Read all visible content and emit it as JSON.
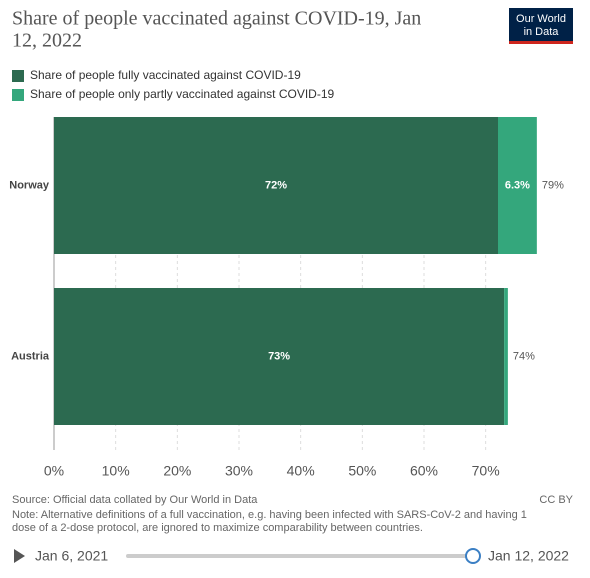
{
  "chart_data": {
    "type": "stacked-bar-horizontal",
    "title": "Share of people vaccinated against COVID-19, Jan 12, 2022",
    "categories": [
      "Norway",
      "Austria"
    ],
    "series": [
      {
        "name": "Share of people fully vaccinated against COVID-19",
        "color": "#2c6a50",
        "values": [
          72,
          73
        ],
        "value_labels": [
          "72%",
          "73%"
        ]
      },
      {
        "name": "Share of people only partly vaccinated against COVID-19",
        "color": "#34a77c",
        "values": [
          6.3,
          0.6
        ],
        "value_labels": [
          "6.3%",
          null
        ]
      }
    ],
    "totals": {
      "values": [
        79,
        74
      ],
      "value_labels": [
        "79%",
        "74%"
      ]
    },
    "xlim": [
      0,
      84
    ],
    "xticks": [
      {
        "value": 0,
        "label": "0%"
      },
      {
        "value": 10,
        "label": "10%"
      },
      {
        "value": 20,
        "label": "20%"
      },
      {
        "value": 30,
        "label": "30%"
      },
      {
        "value": 40,
        "label": "40%"
      },
      {
        "value": 50,
        "label": "50%"
      },
      {
        "value": 60,
        "label": "60%"
      },
      {
        "value": 70,
        "label": "70%"
      }
    ],
    "grid": true
  },
  "logo": [
    "Our World",
    "in Data"
  ],
  "footer": {
    "source": "Source: Official data collated by Our World in Data",
    "license": "CC BY",
    "note": [
      "Note: Alternative definitions of a full vaccination, e.g. having been infected with SARS-CoV-2 and having 1",
      "dose of a 2-dose protocol, are ignored to maximize comparability between countries."
    ]
  },
  "timeline": {
    "start": "Jan 6, 2021",
    "end": "Jan 12, 2022"
  }
}
